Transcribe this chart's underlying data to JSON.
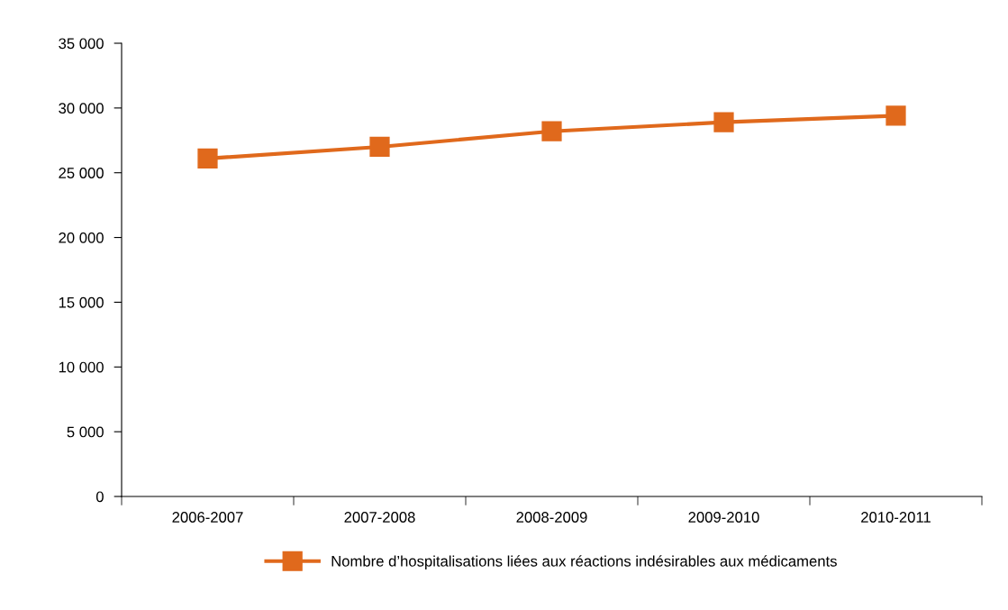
{
  "chart_data": {
    "type": "line",
    "categories": [
      "2006-2007",
      "2007-2008",
      "2008-2009",
      "2009-2010",
      "2010-2011"
    ],
    "series": [
      {
        "name": "Nombre d’hospitalisations liées aux réactions indésirables aux médicaments",
        "color": "#e0691c",
        "values": [
          26100,
          27000,
          28200,
          28900,
          29400
        ]
      }
    ],
    "ylim": [
      0,
      35000
    ],
    "yticks": [
      {
        "value": 0,
        "label": "0"
      },
      {
        "value": 5000,
        "label": "5 000"
      },
      {
        "value": 10000,
        "label": "10 000"
      },
      {
        "value": 15000,
        "label": "15 000"
      },
      {
        "value": 20000,
        "label": "20 000"
      },
      {
        "value": 25000,
        "label": "25 000"
      },
      {
        "value": 30000,
        "label": "30 000"
      },
      {
        "value": 35000,
        "label": "35 000"
      }
    ],
    "marker": "square",
    "line_style": "solid",
    "grid": false,
    "legend": "bottom"
  }
}
